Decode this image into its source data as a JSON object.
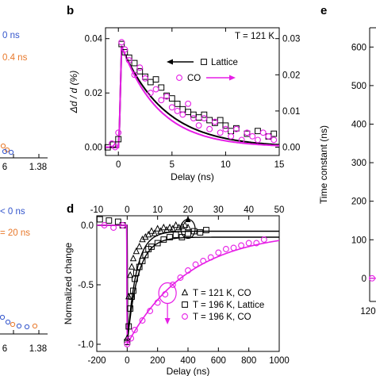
{
  "colors": {
    "magenta": "#e61ee6",
    "black": "#000000",
    "blue": "#3355cc",
    "orange": "#e8782a"
  },
  "panels": {
    "b": "b",
    "d": "d",
    "e": "e"
  },
  "fragments": {
    "a_legend_1": "0 ns",
    "a_legend_2": "0.4 ns",
    "a_tick_left": "6",
    "a_tick_right": "1.38",
    "c_legend_1": "< 0 ns",
    "c_legend_2": "= 20 ns",
    "c_tick_left": "6",
    "c_tick_right": "1.38"
  },
  "chart_data": [
    {
      "panel": "b",
      "type": "scatter",
      "annotation": "T = 121 K",
      "xlabel": "Delay (ns)",
      "ylabel_left": "Δd / d (%)",
      "xlim": [
        -1.2,
        15
      ],
      "ylim_left": [
        -0.003,
        0.044
      ],
      "ylim_right": [
        -0.0023,
        0.033
      ],
      "x_ticks": [
        "0",
        "5",
        "10",
        "15"
      ],
      "y_ticks_left": [
        "0.00",
        "0.02",
        "0.04"
      ],
      "y_ticks_right": [
        "0.00",
        "0.01",
        "0.02",
        "0.03"
      ],
      "legend": [
        {
          "label": "Lattice",
          "marker": "square",
          "color": "#000000",
          "arrow": "left"
        },
        {
          "label": "CO",
          "marker": "circle",
          "color": "#e61ee6",
          "arrow": "right"
        }
      ],
      "series": [
        {
          "name": "Lattice",
          "axis": "left",
          "x": [
            -1,
            -0.5,
            0,
            0.3,
            0.6,
            1,
            1.5,
            2,
            2.5,
            3,
            3.5,
            4,
            4.5,
            5,
            5.5,
            6,
            6.5,
            7,
            7.5,
            8,
            8.5,
            9,
            9.5,
            10,
            10.5,
            11,
            12,
            13,
            14,
            14.5
          ],
          "y": [
            0.0,
            0.001,
            0.003,
            0.038,
            0.035,
            0.033,
            0.031,
            0.028,
            0.026,
            0.024,
            0.025,
            0.022,
            0.019,
            0.018,
            0.016,
            0.014,
            0.013,
            0.012,
            0.011,
            0.012,
            0.01,
            0.009,
            0.01,
            0.008,
            0.006,
            0.007,
            0.005,
            0.006,
            0.004,
            0.005
          ]
        },
        {
          "name": "CO",
          "axis": "right",
          "x": [
            -0.6,
            -0.3,
            0,
            0.3,
            0.6,
            1,
            1.5,
            2,
            2.5,
            3,
            3.5,
            4,
            4.5,
            5,
            5.5,
            6,
            6.5,
            7,
            7.5,
            8,
            8.5,
            9,
            9.5,
            10,
            10.5,
            11,
            11.5,
            12,
            12.5,
            13,
            13.5,
            14,
            14.5
          ],
          "y": [
            0.001,
            0.0,
            0.004,
            0.029,
            0.027,
            0.024,
            0.02,
            0.022,
            0.019,
            0.015,
            0.016,
            0.013,
            0.014,
            0.011,
            0.01,
            0.009,
            0.012,
            0.008,
            0.006,
            0.008,
            0.005,
            0.007,
            0.004,
            0.005,
            0.003,
            0.005,
            0.002,
            0.004,
            0.003,
            0.002,
            0.004,
            0.003,
            0.002
          ]
        }
      ],
      "fits": [
        {
          "name": "Lattice fit",
          "axis": "left",
          "amplitude": 0.037,
          "tau_ns": 4.0,
          "onset": 0.3
        },
        {
          "name": "CO fit",
          "axis": "right",
          "amplitude": 0.028,
          "tau_ns": 3.5,
          "onset": 0.3
        }
      ]
    },
    {
      "panel": "d",
      "type": "scatter",
      "xlabel": "Delay (ns)",
      "ylabel": "Normalized change",
      "xlim": [
        -200,
        1000
      ],
      "x2lim": [
        -10,
        50
      ],
      "ylim": [
        -1.06,
        0.08
      ],
      "x_ticks": [
        "-200",
        "0",
        "200",
        "400",
        "600",
        "800",
        "1000"
      ],
      "x2_ticks": [
        "-10",
        "0",
        "10",
        "20",
        "30",
        "40",
        "50"
      ],
      "y_ticks": [
        "-1.0",
        "-0.5",
        "0.0"
      ],
      "legend": [
        {
          "label": "T = 121 K, CO",
          "marker": "triangle",
          "color": "#000000"
        },
        {
          "label": "T = 196 K, Lattice",
          "marker": "square",
          "color": "#000000"
        },
        {
          "label": "T = 196 K, CO",
          "marker": "circle",
          "color": "#e61ee6"
        }
      ],
      "series": [
        {
          "name": "T = 121 K, CO",
          "axis": "top",
          "x": [
            0,
            0.5,
            1,
            1.5,
            2,
            3,
            4,
            5,
            6,
            7,
            8,
            9,
            10,
            11,
            12,
            13,
            14,
            15,
            16,
            17,
            18,
            19,
            20
          ],
          "y": [
            -0.95,
            -0.6,
            -0.42,
            -0.35,
            -0.28,
            -0.22,
            -0.18,
            -0.12,
            -0.1,
            -0.08,
            -0.05,
            -0.07,
            -0.03,
            -0.05,
            -0.02,
            -0.04,
            -0.02,
            -0.03,
            0.0,
            -0.02,
            -0.01,
            0.0,
            -0.02
          ]
        },
        {
          "name": "T = 196 K, Lattice",
          "axis": "bottom",
          "x": [
            -180,
            -120,
            -60,
            -30,
            0,
            10,
            20,
            30,
            40,
            50,
            60,
            80,
            100,
            120,
            140,
            160,
            200,
            240,
            280,
            320,
            360,
            400,
            440,
            480,
            520
          ],
          "y": [
            0.05,
            0.04,
            0.03,
            0.0,
            -0.98,
            -0.85,
            -0.7,
            -0.6,
            -0.55,
            -0.45,
            -0.4,
            -0.35,
            -0.3,
            -0.25,
            -0.2,
            -0.18,
            -0.15,
            -0.12,
            -0.1,
            -0.08,
            -0.1,
            -0.07,
            -0.05,
            -0.06,
            -0.04
          ]
        },
        {
          "name": "T = 196 K, CO",
          "axis": "bottom",
          "x": [
            -150,
            -90,
            -30,
            0,
            25,
            50,
            100,
            150,
            200,
            250,
            300,
            350,
            400,
            450,
            500,
            550,
            600,
            650,
            700,
            750,
            800,
            850,
            900
          ],
          "y": [
            0.0,
            -0.02,
            0.0,
            -1.0,
            -0.95,
            -0.88,
            -0.8,
            -0.72,
            -0.65,
            -0.58,
            -0.5,
            -0.44,
            -0.38,
            -0.33,
            -0.3,
            -0.27,
            -0.23,
            -0.2,
            -0.19,
            -0.17,
            -0.15,
            -0.15,
            -0.12
          ]
        }
      ],
      "fits": [
        {
          "name": "121 K CO fit",
          "axis": "top",
          "tau": 3.0,
          "floor": -0.05
        },
        {
          "name": "196 K Lattice fit",
          "axis": "bottom",
          "tau": 70,
          "floor": -0.1
        },
        {
          "name": "196 K CO fit",
          "axis": "bottom",
          "tau": 400,
          "floor": -0.05
        }
      ]
    },
    {
      "panel": "e",
      "type": "scatter",
      "ylabel": "Time constant (ns)",
      "ylim": [
        -60,
        650
      ],
      "y_ticks": [
        "0",
        "100",
        "200",
        "300",
        "400",
        "500",
        "600"
      ],
      "x_ticks": [
        "120"
      ],
      "series": []
    }
  ]
}
